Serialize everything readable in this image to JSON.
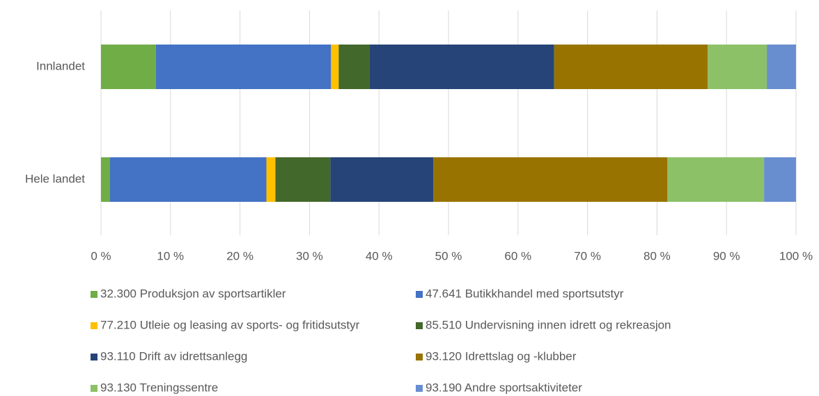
{
  "chart_data": {
    "type": "stacked_barh",
    "categories": [
      "Innlandet",
      "Hele landet"
    ],
    "series": [
      {
        "name": "32.300 Produksjon av sportsartikler",
        "color": "#70ad47",
        "values": [
          7.9,
          1.3
        ]
      },
      {
        "name": "47.641 Butikkhandel med sportsutstyr",
        "color": "#4472c4",
        "values": [
          25.2,
          22.5
        ]
      },
      {
        "name": "77.210 Utleie og leasing av sports- og fritidsutstyr",
        "color": "#ffc000",
        "values": [
          1.1,
          1.3
        ]
      },
      {
        "name": "85.510 Undervisning innen idrett og rekreasjon",
        "color": "#43682b",
        "values": [
          4.4,
          7.9
        ]
      },
      {
        "name": "93.110 Drift av idrettsanlegg",
        "color": "#264478",
        "values": [
          26.6,
          14.8
        ]
      },
      {
        "name": "93.120 Idrettslag og -klubber",
        "color": "#997300",
        "values": [
          22.1,
          33.7
        ]
      },
      {
        "name": "93.130 Treningssentre",
        "color": "#8cc168",
        "values": [
          8.5,
          13.9
        ]
      },
      {
        "name": "93.190 Andre sportsaktiviteter",
        "color": "#698ed0",
        "values": [
          4.2,
          4.6
        ]
      }
    ],
    "xlim": [
      0,
      100
    ],
    "xticks": [
      {
        "value": 0,
        "label": "0 %"
      },
      {
        "value": 10,
        "label": "10 %"
      },
      {
        "value": 20,
        "label": "20 %"
      },
      {
        "value": 30,
        "label": "30 %"
      },
      {
        "value": 40,
        "label": "40 %"
      },
      {
        "value": 50,
        "label": "50 %"
      },
      {
        "value": 60,
        "label": "60 %"
      },
      {
        "value": 70,
        "label": "70 %"
      },
      {
        "value": 80,
        "label": "80 %"
      },
      {
        "value": 90,
        "label": "90 %"
      },
      {
        "value": 100,
        "label": "100 %"
      }
    ],
    "grid": true,
    "legend": "bottom"
  }
}
